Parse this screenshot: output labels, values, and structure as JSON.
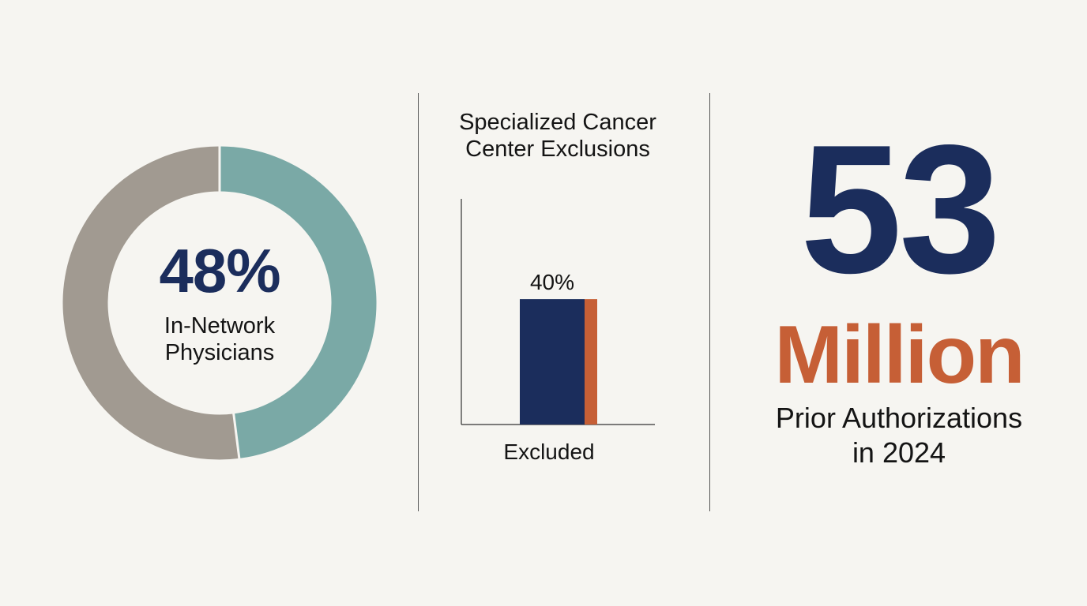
{
  "colors": {
    "background": "#f6f5f1",
    "navy": "#1b2d5c",
    "teal": "#7aa9a6",
    "taupe": "#a19a91",
    "orange": "#c65f36",
    "text": "#141414"
  },
  "chart_data": [
    {
      "type": "pie",
      "style": "donut",
      "slices": [
        {
          "label": "In-Network Physicians",
          "value": 48,
          "color": "#7aa9a6"
        },
        {
          "label": "",
          "value": 52,
          "color": "#a19a91"
        }
      ],
      "center_value": "48%",
      "center_label_lines": [
        "In-Network",
        "Physicians"
      ]
    },
    {
      "type": "bar",
      "title_lines": [
        "Specialized Cancer",
        "Center Exclusions"
      ],
      "categories": [
        "Excluded"
      ],
      "values": [
        40
      ],
      "value_labels": [
        "40%"
      ],
      "ylim": [
        0,
        72
      ],
      "bar_color": "#1b2d5c",
      "accent_color": "#c65f36"
    }
  ],
  "stat": {
    "number": "53",
    "unit": "Million",
    "caption_lines": [
      "Prior Authorizations",
      "in 2024"
    ]
  }
}
